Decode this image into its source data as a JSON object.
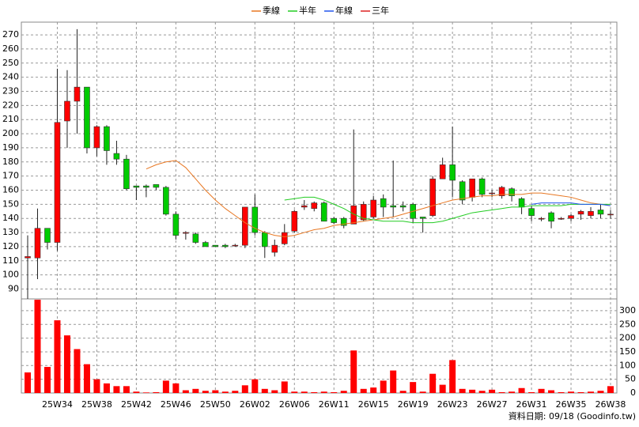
{
  "chart_data": {
    "type": "candlestick",
    "categories": [
      null,
      null,
      null,
      "25W34",
      null,
      null,
      null,
      "25W38",
      null,
      null,
      null,
      "25W42",
      null,
      null,
      null,
      "25W46",
      null,
      null,
      null,
      "25W50",
      null,
      null,
      null,
      "26W02",
      null,
      null,
      null,
      "26W06",
      null,
      null,
      null,
      "26W11",
      null,
      null,
      null,
      "26W15",
      null,
      null,
      null,
      "26W19",
      null,
      null,
      null,
      "26W23",
      null,
      null,
      null,
      "26W27",
      null,
      null,
      null,
      "26W31",
      null,
      null,
      null,
      "26W35",
      null,
      null,
      null,
      "26W38"
    ],
    "open": [
      112,
      112,
      133,
      123,
      209,
      223,
      233,
      190,
      205,
      186,
      182,
      163,
      163,
      164,
      162,
      143,
      130,
      129,
      123,
      121,
      121,
      121,
      121,
      148,
      130,
      116,
      122,
      131,
      148,
      147,
      151,
      140,
      140,
      136,
      139,
      141,
      154,
      149,
      149,
      150,
      141,
      142,
      168,
      178,
      166,
      155,
      168,
      158,
      156,
      161,
      154,
      147,
      140,
      144,
      140,
      140,
      143,
      142,
      146,
      143
    ],
    "high": [
      128,
      147,
      133,
      246,
      245,
      274,
      233,
      206,
      206,
      195,
      185,
      163,
      164,
      164,
      163,
      145,
      131,
      130,
      124,
      121,
      122,
      122,
      148,
      157,
      131,
      125,
      136,
      146,
      153,
      152,
      152,
      141,
      141,
      203,
      152,
      156,
      157,
      181,
      152,
      151,
      141,
      170,
      183,
      205,
      167,
      168,
      169,
      160,
      163,
      162,
      155,
      149,
      141,
      145,
      141,
      143,
      146,
      148,
      150,
      146
    ],
    "low": [
      83,
      97,
      118,
      117,
      190,
      200,
      186,
      184,
      178,
      178,
      160,
      153,
      155,
      160,
      142,
      125,
      125,
      122,
      120,
      120,
      119,
      120,
      119,
      128,
      112,
      113,
      121,
      130,
      146,
      145,
      138,
      136,
      133,
      136,
      138,
      140,
      141,
      141,
      145,
      137,
      130,
      141,
      168,
      155,
      150,
      152,
      155,
      155,
      154,
      152,
      143,
      138,
      138,
      133,
      139,
      138,
      139,
      140,
      140,
      140
    ],
    "close": [
      113,
      133,
      123,
      208,
      223,
      233,
      190,
      205,
      188,
      182,
      161,
      162,
      162,
      162,
      143,
      128,
      130,
      123,
      120,
      120,
      120,
      121,
      148,
      130,
      120,
      121,
      130,
      145,
      149,
      151,
      138,
      137,
      135,
      149,
      150,
      153,
      148,
      148,
      148,
      140,
      140,
      168,
      178,
      167,
      153,
      168,
      157,
      158,
      162,
      156,
      148,
      142,
      140,
      138,
      140,
      142,
      145,
      145,
      143,
      143
    ],
    "up_color": "#ff0000",
    "down_color": "#00cc00",
    "ylim": [
      83,
      279
    ],
    "yticks": [
      90,
      100,
      110,
      120,
      130,
      140,
      150,
      160,
      170,
      180,
      190,
      200,
      210,
      220,
      230,
      240,
      250,
      260,
      270
    ],
    "series": [
      {
        "name": "季線",
        "color": "#e87722",
        "values": [
          null,
          null,
          null,
          null,
          null,
          null,
          null,
          null,
          null,
          null,
          null,
          null,
          175,
          178,
          180,
          181,
          176,
          168,
          160,
          153,
          147,
          142,
          137,
          133,
          130,
          128,
          127,
          128,
          130,
          132,
          133,
          135,
          136,
          137,
          138,
          139,
          140,
          141,
          143,
          145,
          147,
          149,
          151,
          153,
          154,
          155,
          156,
          156,
          157,
          157,
          157,
          158,
          158,
          157,
          156,
          155,
          153,
          151,
          150,
          149
        ]
      },
      {
        "name": "半年",
        "color": "#22cc22",
        "values": [
          null,
          null,
          null,
          null,
          null,
          null,
          null,
          null,
          null,
          null,
          null,
          null,
          null,
          null,
          null,
          null,
          null,
          null,
          null,
          null,
          null,
          null,
          null,
          null,
          null,
          null,
          153,
          154,
          155,
          155,
          153,
          150,
          147,
          143,
          140,
          139,
          138,
          138,
          138,
          137,
          137,
          137,
          138,
          140,
          142,
          144,
          145,
          146,
          147,
          148,
          148,
          149,
          149,
          149,
          149,
          150,
          150,
          150,
          150,
          150
        ]
      },
      {
        "name": "年線",
        "color": "#2255ee",
        "values": [
          null,
          null,
          null,
          null,
          null,
          null,
          null,
          null,
          null,
          null,
          null,
          null,
          null,
          null,
          null,
          null,
          null,
          null,
          null,
          null,
          null,
          null,
          null,
          null,
          null,
          null,
          null,
          null,
          null,
          null,
          null,
          null,
          null,
          null,
          null,
          null,
          null,
          null,
          null,
          null,
          null,
          null,
          null,
          null,
          null,
          null,
          null,
          null,
          null,
          null,
          null,
          150,
          151,
          151,
          151,
          151,
          150,
          150,
          150,
          149
        ]
      },
      {
        "name": "三年",
        "color": "#dd2222",
        "values": [
          null,
          null,
          null,
          null,
          null,
          null,
          null,
          null,
          null,
          null,
          null,
          null,
          null,
          null,
          null,
          null,
          null,
          null,
          null,
          null,
          null,
          null,
          null,
          null,
          null,
          null,
          null,
          null,
          null,
          null,
          null,
          null,
          null,
          null,
          null,
          null,
          null,
          null,
          null,
          null,
          null,
          null,
          null,
          null,
          null,
          null,
          null,
          null,
          null,
          null,
          null,
          null,
          null,
          null,
          null,
          null,
          null,
          null,
          null,
          null
        ]
      }
    ],
    "volume": {
      "color": "#ff0000",
      "values": [
        75,
        340,
        95,
        265,
        210,
        160,
        105,
        50,
        35,
        25,
        25,
        5,
        2,
        3,
        45,
        35,
        10,
        15,
        8,
        10,
        5,
        8,
        28,
        50,
        15,
        10,
        42,
        5,
        5,
        3,
        5,
        3,
        8,
        155,
        15,
        20,
        45,
        82,
        8,
        40,
        5,
        70,
        30,
        120,
        15,
        12,
        8,
        12,
        3,
        5,
        18,
        3,
        15,
        10,
        3,
        5,
        3,
        5,
        8,
        25
      ],
      "ylim": [
        0,
        343
      ],
      "yticks": [
        0,
        50,
        100,
        150,
        200,
        250,
        300
      ]
    },
    "grid": true,
    "footnote": "資料日期: 09/18  (Goodinfo.tw)"
  }
}
